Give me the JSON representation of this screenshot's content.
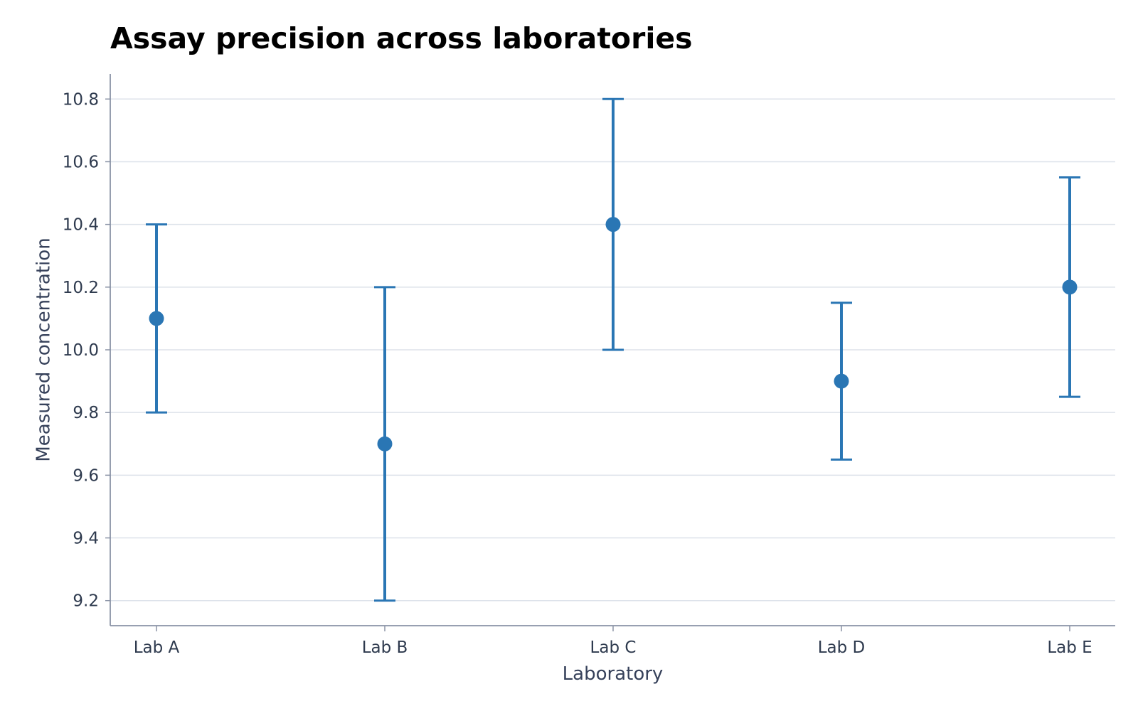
{
  "chart_data": {
    "type": "scatter",
    "title": "Assay precision across laboratories",
    "xlabel": "Laboratory",
    "ylabel": "Measured concentration",
    "categories": [
      "Lab A",
      "Lab B",
      "Lab C",
      "Lab D",
      "Lab E"
    ],
    "series": [
      {
        "values": [
          10.1,
          9.7,
          10.4,
          9.9,
          10.2
        ],
        "error_low": [
          9.8,
          9.2,
          10.0,
          9.65,
          9.85
        ],
        "error_high": [
          10.4,
          10.2,
          10.8,
          10.15,
          10.55
        ]
      }
    ],
    "ylim": [
      9.12,
      10.88
    ],
    "yticks": [
      "9.2",
      "9.4",
      "9.6",
      "9.8",
      "10.0",
      "10.2",
      "10.4",
      "10.6",
      "10.8"
    ],
    "grid": "horizontal",
    "legend": "none",
    "colors": {
      "marker": "#2a76b4",
      "grid": "#dde2ea",
      "axis": "#8a93a6",
      "text": "#2e3a4e"
    }
  }
}
